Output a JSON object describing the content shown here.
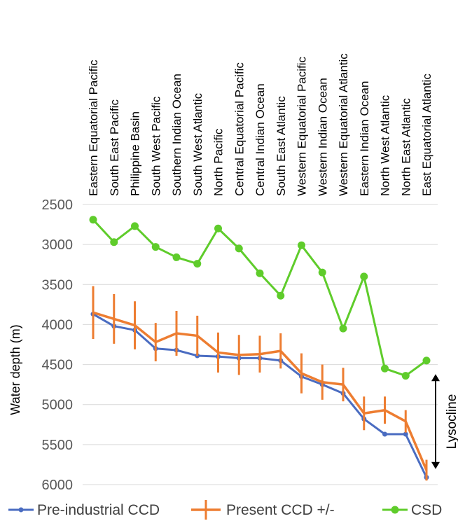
{
  "chart_data": {
    "type": "line",
    "categories": [
      "Eastern Equatorial Pacific",
      "South East Pacific",
      "Philippine Basin",
      "South West Pacific",
      "Southern Indian Ocean",
      "South West Atlantic",
      "North Pacific",
      "Central Equatorial Pacific",
      "Central Indian Ocean",
      "South East Atlantic",
      "Western Equatorial Pacific",
      "Western Indian Ocean",
      "Western Equatorial Atlantic",
      "Eastern Indian Ocean",
      "North West Atlantic",
      "North East Atlantic",
      "East Equatorial Atlantic"
    ],
    "series": [
      {
        "name": "Pre-industrial CCD",
        "color": "#4a6cc1",
        "values": [
          3870,
          4020,
          4070,
          4300,
          4320,
          4390,
          4400,
          4420,
          4420,
          4450,
          4650,
          4750,
          4860,
          5180,
          5370,
          5370,
          5910
        ]
      },
      {
        "name": "Present CCD +/-",
        "color": "#ed7d31",
        "values": [
          3850,
          3930,
          4010,
          4220,
          4110,
          4140,
          4350,
          4380,
          4370,
          4330,
          4610,
          4720,
          4750,
          5110,
          5070,
          5210,
          5820
        ],
        "error": [
          330,
          310,
          300,
          240,
          280,
          250,
          250,
          250,
          230,
          220,
          250,
          220,
          210,
          210,
          170,
          140,
          130
        ]
      },
      {
        "name": "CSD",
        "color": "#5fcc2b",
        "values": [
          2690,
          2970,
          2770,
          3030,
          3160,
          3240,
          2800,
          3050,
          3360,
          3640,
          3010,
          3350,
          4050,
          3400,
          4550,
          4640,
          4450
        ]
      }
    ],
    "ylabel": "Water depth (m)",
    "ylim": [
      2500,
      6000
    ],
    "yticks": [
      "2500",
      "3000",
      "3500",
      "4000",
      "4500",
      "5000",
      "5500",
      "6000"
    ],
    "y_reversed": true,
    "grid": true,
    "legend_position": "bottom",
    "annotation": {
      "text": "Lysocline",
      "from": 4550,
      "to": 5910
    }
  }
}
